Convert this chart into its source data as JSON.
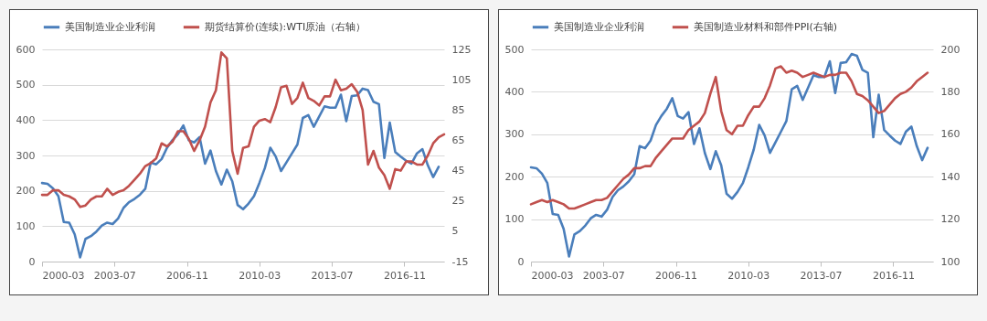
{
  "chart_data": [
    {
      "type": "line",
      "x": [
        "2000-03",
        "2000-06",
        "2000-09",
        "2000-12",
        "2001-03",
        "2001-06",
        "2001-09",
        "2001-12",
        "2002-03",
        "2002-06",
        "2002-09",
        "2002-12",
        "2003-03",
        "2003-06",
        "2003-09",
        "2003-12",
        "2004-03",
        "2004-06",
        "2004-09",
        "2004-12",
        "2005-03",
        "2005-06",
        "2005-09",
        "2005-12",
        "2006-03",
        "2006-06",
        "2006-09",
        "2006-12",
        "2007-03",
        "2007-06",
        "2007-09",
        "2007-12",
        "2008-03",
        "2008-06",
        "2008-09",
        "2008-12",
        "2009-03",
        "2009-06",
        "2009-09",
        "2009-12",
        "2010-03",
        "2010-06",
        "2010-09",
        "2010-12",
        "2011-03",
        "2011-06",
        "2011-09",
        "2011-12",
        "2012-03",
        "2012-06",
        "2012-09",
        "2012-12",
        "2013-03",
        "2013-06",
        "2013-09",
        "2013-12",
        "2014-03",
        "2014-06",
        "2014-09",
        "2014-12",
        "2015-03",
        "2015-06",
        "2015-09",
        "2015-12",
        "2016-03",
        "2016-06",
        "2016-09",
        "2016-12",
        "2017-03",
        "2017-06",
        "2017-09",
        "2017-12",
        "2018-03",
        "2018-06",
        "2018-09"
      ],
      "series": [
        {
          "name": "美国制造业企业利润",
          "color": "#4a7ebb",
          "values": [
            222,
            220,
            207,
            185,
            112,
            110,
            77,
            12,
            64,
            72,
            85,
            102,
            110,
            106,
            122,
            152,
            168,
            177,
            189,
            206,
            280,
            275,
            290,
            322,
            343,
            360,
            385,
            343,
            337,
            352,
            277,
            314,
            256,
            218,
            260,
            227,
            160,
            148,
            164,
            185,
            222,
            264,
            322,
            297,
            256,
            281,
            306,
            331,
            406,
            414,
            381,
            410,
            439,
            435,
            435,
            472,
            397,
            468,
            470,
            489,
            485,
            452,
            445,
            293,
            393,
            310,
            297,
            285,
            277,
            306,
            318,
            272,
            239,
            268,
            null
          ]
        },
        {
          "name": "期货结算价(连续):WTI原油（右轴）",
          "color": "#c0504d",
          "axis": "y2",
          "values": [
            29,
            29,
            32,
            32,
            29,
            28,
            26,
            21,
            22,
            26,
            28,
            28,
            33,
            29,
            31,
            32,
            35,
            39,
            43,
            48,
            50,
            53,
            63,
            61,
            64,
            71,
            71,
            66,
            58,
            65,
            74,
            90,
            98,
            123,
            119,
            58,
            43,
            60,
            61,
            74,
            78,
            79,
            77,
            87,
            100,
            101,
            89,
            93,
            103,
            93,
            91,
            88,
            94,
            94,
            105,
            98,
            99,
            102,
            97,
            85,
            49,
            58,
            47,
            42,
            33,
            46,
            45,
            51,
            51,
            49,
            49,
            55,
            63,
            67,
            69
          ]
        }
      ],
      "xlim": [
        "2000-03",
        "2018-09"
      ],
      "xticks": [
        "2000-03",
        "2003-07",
        "2006-11",
        "2010-03",
        "2013-07",
        "2016-11"
      ],
      "ylim": [
        0,
        600
      ],
      "yticks": [
        0,
        100,
        200,
        300,
        400,
        500,
        600
      ],
      "y2lim": [
        -15,
        125
      ],
      "y2ticks": [
        -15,
        5,
        25,
        45,
        65,
        85,
        105,
        125
      ],
      "grid": "y",
      "legend": "top"
    },
    {
      "type": "line",
      "x": [
        "2000-03",
        "2000-06",
        "2000-09",
        "2000-12",
        "2001-03",
        "2001-06",
        "2001-09",
        "2001-12",
        "2002-03",
        "2002-06",
        "2002-09",
        "2002-12",
        "2003-03",
        "2003-06",
        "2003-09",
        "2003-12",
        "2004-03",
        "2004-06",
        "2004-09",
        "2004-12",
        "2005-03",
        "2005-06",
        "2005-09",
        "2005-12",
        "2006-03",
        "2006-06",
        "2006-09",
        "2006-12",
        "2007-03",
        "2007-06",
        "2007-09",
        "2007-12",
        "2008-03",
        "2008-06",
        "2008-09",
        "2008-12",
        "2009-03",
        "2009-06",
        "2009-09",
        "2009-12",
        "2010-03",
        "2010-06",
        "2010-09",
        "2010-12",
        "2011-03",
        "2011-06",
        "2011-09",
        "2011-12",
        "2012-03",
        "2012-06",
        "2012-09",
        "2012-12",
        "2013-03",
        "2013-06",
        "2013-09",
        "2013-12",
        "2014-03",
        "2014-06",
        "2014-09",
        "2014-12",
        "2015-03",
        "2015-06",
        "2015-09",
        "2015-12",
        "2016-03",
        "2016-06",
        "2016-09",
        "2016-12",
        "2017-03",
        "2017-06",
        "2017-09",
        "2017-12",
        "2018-03",
        "2018-06"
      ],
      "series": [
        {
          "name": "美国制造业企业利润",
          "color": "#4a7ebb",
          "values": [
            222,
            220,
            207,
            185,
            112,
            110,
            77,
            12,
            64,
            72,
            85,
            102,
            110,
            106,
            122,
            152,
            168,
            177,
            189,
            206,
            272,
            267,
            285,
            322,
            343,
            360,
            385,
            343,
            337,
            352,
            277,
            314,
            256,
            218,
            260,
            227,
            160,
            148,
            164,
            185,
            222,
            264,
            322,
            297,
            256,
            281,
            306,
            331,
            406,
            414,
            381,
            410,
            439,
            435,
            435,
            472,
            397,
            468,
            470,
            489,
            485,
            452,
            445,
            293,
            393,
            310,
            297,
            285,
            277,
            306,
            318,
            272,
            239,
            268
          ]
        },
        {
          "name": "美国制造业材料和部件PPI(右轴)",
          "color": "#c0504d",
          "axis": "y2",
          "values": [
            127,
            128,
            129,
            128,
            129,
            128,
            127,
            125,
            125,
            126,
            127,
            128,
            129,
            129,
            130,
            133,
            136,
            139,
            141,
            144,
            144,
            145,
            145,
            149,
            152,
            155,
            158,
            158,
            158,
            162,
            164,
            166,
            170,
            179,
            187,
            171,
            162,
            160,
            164,
            164,
            169,
            173,
            173,
            177,
            183,
            191,
            192,
            189,
            190,
            189,
            187,
            188,
            189,
            188,
            187,
            188,
            188,
            189,
            189,
            185,
            179,
            178,
            176,
            173,
            170,
            171,
            174,
            177,
            179,
            180,
            182,
            185,
            187,
            189
          ]
        }
      ],
      "xlim": [
        "2000-03",
        "2018-09"
      ],
      "xticks": [
        "2000-03",
        "2003-07",
        "2006-11",
        "2010-03",
        "2013-07",
        "2016-11"
      ],
      "ylim": [
        0,
        500
      ],
      "yticks": [
        0,
        100,
        200,
        300,
        400,
        500
      ],
      "y2lim": [
        100,
        200
      ],
      "y2ticks": [
        100,
        120,
        140,
        160,
        180,
        200
      ],
      "grid": "y",
      "legend": "top"
    }
  ]
}
